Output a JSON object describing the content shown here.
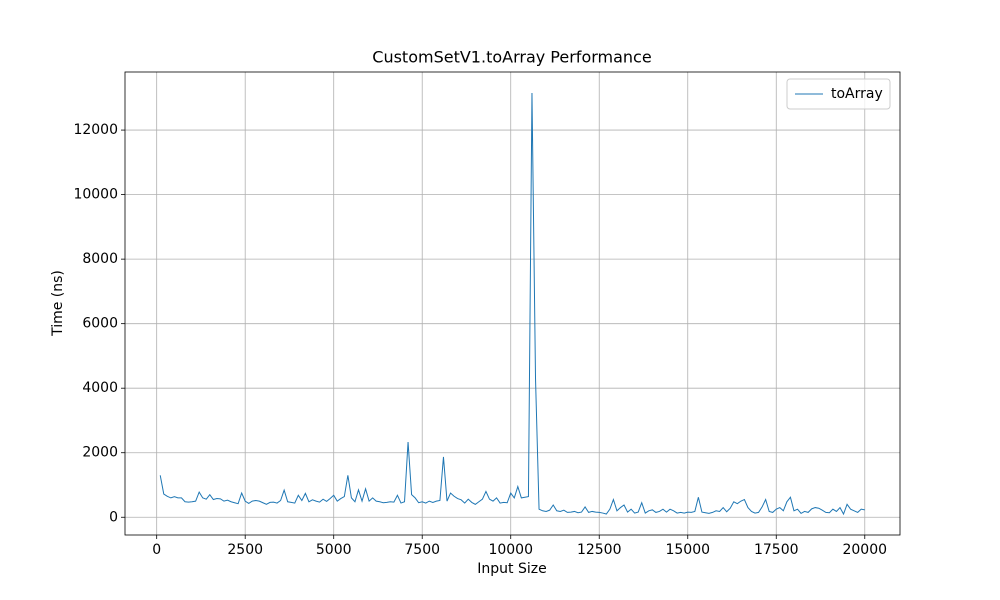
{
  "chart_data": {
    "type": "line",
    "title": "CustomSetV1.toArray Performance",
    "x_label": "Input Size",
    "y_label": "Time (ns)",
    "x": [
      100,
      200,
      300,
      400,
      500,
      600,
      700,
      800,
      900,
      1000,
      1100,
      1200,
      1300,
      1400,
      1500,
      1600,
      1700,
      1800,
      1900,
      2000,
      2100,
      2200,
      2300,
      2400,
      2500,
      2600,
      2700,
      2800,
      2900,
      3000,
      3100,
      3200,
      3300,
      3400,
      3500,
      3600,
      3700,
      3800,
      3900,
      4000,
      4100,
      4200,
      4300,
      4400,
      4500,
      4600,
      4700,
      4800,
      4900,
      5000,
      5100,
      5200,
      5300,
      5400,
      5500,
      5600,
      5700,
      5800,
      5900,
      6000,
      6100,
      6200,
      6300,
      6400,
      6500,
      6600,
      6700,
      6800,
      6900,
      7000,
      7100,
      7200,
      7300,
      7400,
      7500,
      7600,
      7700,
      7800,
      7900,
      8000,
      8100,
      8200,
      8300,
      8400,
      8500,
      8600,
      8700,
      8800,
      8900,
      9000,
      9100,
      9200,
      9300,
      9400,
      9500,
      9600,
      9700,
      9800,
      9900,
      10000,
      10100,
      10200,
      10300,
      10400,
      10500,
      10600,
      10700,
      10800,
      10900,
      11000,
      11100,
      11200,
      11300,
      11400,
      11500,
      11600,
      11700,
      11800,
      11900,
      12000,
      12100,
      12200,
      12300,
      12400,
      12500,
      12600,
      12700,
      12800,
      12900,
      13000,
      13100,
      13200,
      13300,
      13400,
      13500,
      13600,
      13700,
      13800,
      13900,
      14000,
      14100,
      14200,
      14300,
      14400,
      14500,
      14600,
      14700,
      14800,
      14900,
      15000,
      15100,
      15200,
      15300,
      15400,
      15500,
      15600,
      15700,
      15800,
      15900,
      16000,
      16100,
      16200,
      16300,
      16400,
      16500,
      16600,
      16700,
      16800,
      16900,
      17000,
      17100,
      17200,
      17300,
      17400,
      17500,
      17600,
      17700,
      17800,
      17900,
      18000,
      18100,
      18200,
      18300,
      18400,
      18500,
      18600,
      18700,
      18800,
      18900,
      19000,
      19100,
      19200,
      19300,
      19400,
      19500,
      19600,
      19700,
      19800,
      19900,
      20000
    ],
    "series": [
      {
        "name": "toArray",
        "color": "#1f77b4",
        "values": [
          1300,
          720,
          650,
          600,
          640,
          600,
          600,
          480,
          470,
          480,
          500,
          780,
          600,
          560,
          700,
          550,
          580,
          570,
          500,
          530,
          480,
          450,
          420,
          750,
          500,
          430,
          500,
          520,
          500,
          450,
          400,
          460,
          470,
          440,
          520,
          840,
          480,
          460,
          440,
          680,
          520,
          740,
          480,
          540,
          500,
          470,
          560,
          490,
          580,
          680,
          500,
          580,
          640,
          1300,
          600,
          480,
          850,
          500,
          880,
          500,
          600,
          500,
          480,
          450,
          460,
          480,
          470,
          680,
          440,
          480,
          2330,
          700,
          600,
          450,
          480,
          440,
          500,
          460,
          500,
          520,
          1870,
          500,
          750,
          650,
          580,
          540,
          440,
          560,
          460,
          400,
          480,
          560,
          800,
          560,
          500,
          600,
          440,
          460,
          450,
          750,
          600,
          950,
          600,
          620,
          640,
          13150,
          4300,
          250,
          200,
          180,
          220,
          380,
          200,
          180,
          220,
          150,
          160,
          180,
          140,
          160,
          320,
          150,
          180,
          160,
          150,
          130,
          100,
          250,
          550,
          200,
          300,
          380,
          160,
          250,
          130,
          160,
          450,
          130,
          200,
          230,
          150,
          180,
          250,
          160,
          250,
          200,
          130,
          150,
          130,
          160,
          150,
          180,
          620,
          160,
          140,
          120,
          150,
          200,
          180,
          300,
          170,
          280,
          480,
          420,
          500,
          550,
          300,
          180,
          130,
          150,
          320,
          550,
          180,
          150,
          250,
          300,
          200,
          480,
          620,
          200,
          250,
          120,
          180,
          150,
          260,
          300,
          280,
          220,
          150,
          140,
          250,
          180,
          300,
          100,
          400,
          250,
          200,
          150,
          250,
          230
        ]
      }
    ],
    "xlim": [
      -895,
      20995
    ],
    "ylim": [
      -550,
      13800
    ],
    "xticks": [
      0,
      2500,
      5000,
      7500,
      10000,
      12500,
      15000,
      17500,
      20000
    ],
    "yticks": [
      0,
      2000,
      4000,
      6000,
      8000,
      10000,
      12000
    ],
    "grid": true,
    "legend": "upper right"
  }
}
